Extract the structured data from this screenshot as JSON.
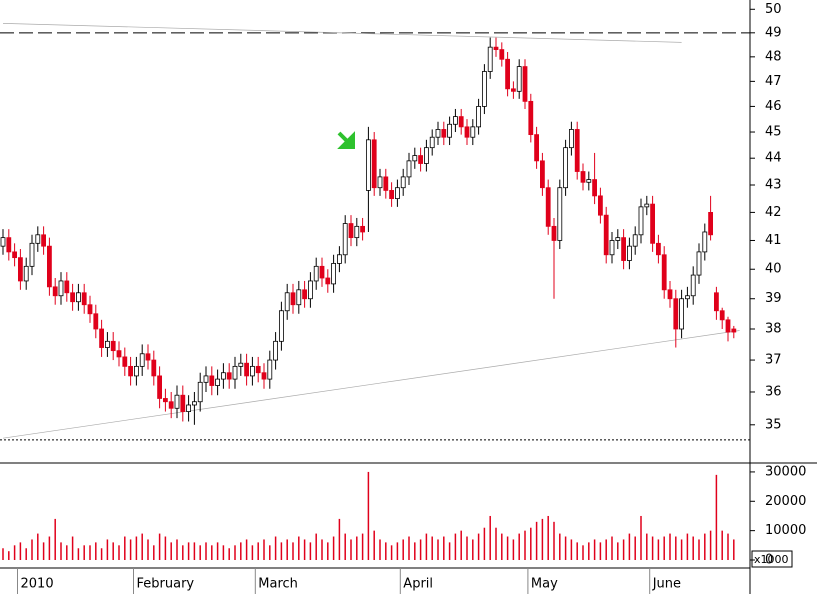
{
  "chart_data": {
    "type": "candlestick",
    "log_scale": true,
    "ylim": [
      33.9,
      50.4
    ],
    "yticks": [
      35,
      36,
      37,
      38,
      39,
      40,
      41,
      42,
      43,
      44,
      45,
      46,
      47,
      48,
      49,
      50
    ],
    "up_color": "#ffffff",
    "down_color": "#e0001b",
    "categories": [
      null,
      null,
      null,
      "2010",
      null,
      null,
      null,
      null,
      null,
      null,
      null,
      null,
      null,
      null,
      null,
      null,
      null,
      null,
      null,
      null,
      null,
      null,
      null,
      "February",
      null,
      null,
      null,
      null,
      null,
      null,
      null,
      null,
      null,
      null,
      null,
      null,
      null,
      null,
      null,
      null,
      null,
      null,
      null,
      null,
      "March",
      null,
      null,
      null,
      null,
      null,
      null,
      null,
      null,
      null,
      null,
      null,
      null,
      null,
      null,
      null,
      null,
      null,
      null,
      null,
      null,
      null,
      null,
      null,
      null,
      "April",
      null,
      null,
      null,
      null,
      null,
      null,
      null,
      null,
      null,
      null,
      null,
      null,
      null,
      null,
      null,
      null,
      null,
      null,
      null,
      null,
      null,
      "May",
      null,
      null,
      null,
      null,
      null,
      null,
      null,
      null,
      null,
      null,
      null,
      null,
      null,
      null,
      null,
      null,
      null,
      null,
      null,
      null,
      "June",
      null,
      null,
      null,
      null,
      null,
      null,
      null,
      null,
      null,
      null,
      null,
      null,
      null,
      null
    ],
    "open": [
      40.8,
      41.1,
      40.6,
      40.4,
      39.6,
      40.1,
      40.9,
      41.2,
      40.8,
      39.4,
      39.1,
      39.6,
      39.2,
      38.9,
      39.2,
      38.8,
      38.5,
      38.0,
      37.4,
      37.6,
      37.3,
      37.1,
      36.8,
      36.5,
      36.8,
      37.2,
      37.0,
      36.5,
      35.8,
      35.7,
      35.5,
      35.9,
      35.4,
      35.6,
      35.7,
      36.3,
      36.5,
      36.2,
      36.4,
      36.6,
      36.4,
      36.8,
      36.9,
      36.5,
      36.8,
      36.6,
      36.4,
      37.0,
      37.6,
      38.6,
      39.2,
      38.8,
      39.3,
      39.0,
      39.6,
      40.1,
      39.7,
      39.5,
      40.2,
      40.5,
      41.6,
      41.1,
      41.5,
      42.8,
      44.7,
      42.9,
      43.3,
      42.8,
      42.5,
      42.9,
      43.3,
      43.9,
      44.1,
      43.8,
      44.4,
      44.8,
      45.1,
      44.8,
      45.3,
      45.6,
      45.2,
      44.8,
      45.2,
      46.0,
      47.4,
      48.4,
      48.3,
      47.9,
      46.7,
      46.6,
      47.6,
      46.2,
      44.9,
      43.9,
      42.9,
      41.5,
      41.0,
      42.9,
      44.4,
      45.1,
      43.5,
      43.1,
      43.2,
      42.6,
      41.9,
      40.5,
      41.0,
      41.1,
      40.3,
      40.8,
      41.2,
      42.2,
      42.3,
      40.9,
      40.5,
      39.3,
      39.0,
      38.0,
      39.0,
      39.1,
      39.8,
      40.6,
      42.0,
      39.2,
      38.6,
      38.3,
      38.0
    ],
    "high": [
      41.4,
      41.4,
      40.9,
      40.7,
      40.4,
      41.2,
      41.5,
      41.5,
      41.1,
      39.7,
      39.9,
      39.9,
      39.5,
      39.5,
      39.5,
      39.1,
      38.8,
      38.3,
      37.9,
      37.9,
      37.6,
      37.4,
      37.1,
      37.1,
      37.5,
      37.5,
      37.3,
      36.8,
      36.1,
      36.0,
      36.2,
      36.2,
      35.9,
      36.0,
      36.6,
      36.8,
      36.8,
      36.7,
      36.9,
      36.9,
      37.1,
      37.2,
      37.2,
      37.1,
      37.1,
      36.9,
      37.3,
      37.9,
      38.9,
      39.5,
      39.5,
      39.6,
      39.6,
      39.9,
      40.4,
      40.4,
      40.0,
      40.5,
      40.8,
      41.9,
      41.9,
      41.8,
      41.8,
      45.2,
      45.0,
      43.6,
      43.6,
      43.1,
      43.2,
      43.6,
      44.2,
      44.4,
      44.4,
      44.7,
      45.1,
      45.4,
      45.4,
      45.6,
      45.9,
      45.9,
      45.5,
      45.5,
      46.3,
      47.7,
      48.8,
      48.8,
      48.6,
      48.2,
      47.0,
      47.9,
      47.9,
      46.5,
      45.2,
      44.2,
      43.2,
      41.8,
      43.2,
      44.7,
      45.4,
      45.4,
      43.8,
      43.5,
      44.2,
      42.9,
      42.2,
      41.3,
      41.4,
      41.4,
      41.1,
      41.5,
      42.5,
      42.6,
      42.6,
      41.2,
      40.8,
      39.6,
      39.3,
      39.3,
      39.4,
      40.1,
      40.9,
      41.6,
      42.6,
      39.4,
      38.7,
      38.4,
      38.1
    ],
    "low": [
      40.5,
      40.3,
      40.1,
      39.3,
      39.3,
      39.8,
      40.6,
      40.5,
      39.1,
      38.8,
      38.8,
      38.9,
      38.6,
      38.6,
      38.5,
      38.2,
      37.7,
      37.1,
      37.1,
      37.0,
      36.8,
      36.5,
      36.2,
      36.2,
      36.5,
      36.7,
      36.2,
      35.5,
      35.4,
      35.2,
      35.2,
      35.1,
      35.1,
      35.0,
      35.4,
      36.0,
      35.9,
      35.9,
      36.1,
      36.1,
      36.1,
      36.5,
      36.2,
      36.2,
      36.3,
      36.1,
      36.1,
      36.7,
      37.3,
      38.3,
      38.5,
      38.5,
      38.7,
      38.7,
      39.3,
      39.4,
      39.2,
      39.2,
      39.9,
      40.2,
      40.8,
      40.8,
      41.0,
      41.3,
      42.6,
      42.6,
      42.5,
      42.2,
      42.2,
      42.6,
      43.0,
      43.6,
      43.5,
      43.5,
      44.1,
      44.5,
      44.5,
      44.5,
      45.0,
      44.9,
      44.5,
      44.5,
      44.9,
      45.7,
      47.1,
      48.0,
      47.6,
      46.4,
      46.3,
      46.3,
      45.9,
      44.6,
      43.6,
      42.6,
      41.2,
      39.0,
      40.7,
      42.6,
      44.1,
      43.2,
      42.8,
      42.8,
      42.3,
      41.6,
      40.2,
      40.2,
      40.7,
      40.0,
      40.0,
      40.5,
      40.9,
      41.9,
      40.6,
      40.2,
      39.0,
      38.7,
      37.4,
      37.7,
      38.7,
      38.8,
      39.5,
      40.3,
      41.0,
      38.3,
      38.0,
      37.6,
      37.7
    ],
    "close": [
      41.1,
      40.6,
      40.4,
      39.6,
      40.1,
      40.9,
      41.2,
      40.8,
      39.4,
      39.1,
      39.6,
      39.2,
      38.9,
      39.2,
      38.8,
      38.5,
      38.0,
      37.4,
      37.6,
      37.3,
      37.1,
      36.8,
      36.5,
      36.8,
      37.2,
      37.0,
      36.5,
      35.8,
      35.7,
      35.5,
      35.9,
      35.4,
      35.6,
      35.7,
      36.3,
      36.5,
      36.2,
      36.4,
      36.6,
      36.4,
      36.8,
      36.9,
      36.5,
      36.8,
      36.6,
      36.4,
      37.0,
      37.6,
      38.6,
      39.2,
      38.8,
      39.3,
      39.0,
      39.6,
      40.1,
      39.7,
      39.5,
      40.2,
      40.5,
      41.6,
      41.1,
      41.5,
      41.3,
      44.7,
      42.9,
      43.3,
      42.8,
      42.5,
      42.9,
      43.3,
      43.9,
      44.1,
      43.8,
      44.4,
      44.8,
      45.1,
      44.8,
      45.3,
      45.6,
      45.2,
      44.8,
      45.2,
      46.0,
      47.4,
      48.4,
      48.3,
      47.9,
      46.7,
      46.6,
      47.6,
      46.2,
      44.9,
      43.9,
      42.9,
      41.5,
      41.0,
      42.9,
      44.4,
      45.1,
      43.5,
      43.1,
      43.2,
      42.6,
      41.9,
      40.5,
      41.0,
      41.1,
      40.3,
      40.8,
      41.2,
      42.2,
      42.3,
      40.9,
      40.5,
      39.3,
      39.0,
      38.0,
      39.0,
      39.1,
      39.8,
      40.6,
      41.3,
      41.2,
      38.6,
      38.3,
      37.9,
      37.9
    ],
    "volume": [
      4000,
      3000,
      5000,
      6000,
      4000,
      7000,
      9000,
      6000,
      8000,
      14000,
      6000,
      5000,
      8000,
      4000,
      5000,
      5000,
      6000,
      4000,
      7000,
      6000,
      5000,
      8000,
      7000,
      8000,
      9000,
      7000,
      5000,
      9000,
      8000,
      6000,
      7000,
      5000,
      6000,
      6000,
      5000,
      6000,
      5000,
      6000,
      5000,
      4000,
      5000,
      6000,
      7000,
      5000,
      6000,
      7000,
      5000,
      8000,
      6000,
      7000,
      6000,
      8000,
      7000,
      6000,
      9000,
      7000,
      6000,
      8000,
      14000,
      9000,
      7000,
      8000,
      9000,
      30000,
      10000,
      7000,
      6000,
      5000,
      6000,
      7000,
      8000,
      6000,
      7000,
      9000,
      8000,
      7000,
      8000,
      6000,
      9000,
      10000,
      8000,
      7000,
      9000,
      11000,
      15000,
      11000,
      9000,
      8000,
      7000,
      9000,
      10000,
      11000,
      13000,
      14000,
      15000,
      13000,
      9000,
      8000,
      7000,
      6000,
      5000,
      6000,
      7000,
      6000,
      7000,
      8000,
      6000,
      7000,
      9000,
      8000,
      15000,
      9000,
      8000,
      7000,
      8000,
      9000,
      8000,
      7000,
      9000,
      8000,
      7000,
      9000,
      10000,
      29000,
      10000,
      9000,
      7000
    ],
    "volume_color": "#e0001b",
    "volume_ylim": [
      0,
      32700
    ],
    "volume_yticks": [
      0,
      10000,
      20000,
      30000
    ],
    "volume_unit": "x1000",
    "hlines": [
      {
        "value": 49.0,
        "style": "dashed"
      },
      {
        "value": 34.55,
        "style": "dotted"
      }
    ],
    "trendlines": [
      {
        "start": [
          0,
          49.4
        ],
        "end": [
          117,
          48.6
        ]
      },
      {
        "start": [
          0,
          34.6
        ],
        "end": [
          127,
          37.95
        ]
      }
    ]
  }
}
